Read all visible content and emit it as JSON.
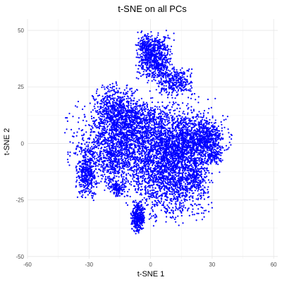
{
  "chart_data": {
    "type": "scatter",
    "title": "t-SNE on all PCs",
    "xlabel": "t-SNE 1",
    "ylabel": "t-SNE 2",
    "xlim": [
      -60,
      62
    ],
    "ylim": [
      -51,
      55
    ],
    "x_ticks": [
      -60,
      -30,
      0,
      30,
      60
    ],
    "y_ticks": [
      -50,
      -25,
      0,
      25,
      50
    ],
    "grid": true,
    "point_color": "#0000ff",
    "series": [
      {
        "clusters": [
          {
            "cx": -3,
            "cy": 0,
            "sx": 16,
            "sy": 10,
            "n": 2300
          },
          {
            "cx": 18,
            "cy": 1,
            "sx": 9,
            "sy": 5,
            "n": 900
          },
          {
            "cx": -17,
            "cy": 14,
            "sx": 5,
            "sy": 6,
            "n": 600
          },
          {
            "cx": -9,
            "cy": 9,
            "sx": 7,
            "sy": 4,
            "n": 400
          },
          {
            "cx": 9,
            "cy": -15,
            "sx": 9,
            "sy": 9,
            "n": 1300
          },
          {
            "cx": -18,
            "cy": -7,
            "sx": 4,
            "sy": 6,
            "n": 350
          },
          {
            "cx": 2,
            "cy": 38,
            "sx": 4,
            "sy": 5,
            "n": 750
          },
          {
            "cx": 12,
            "cy": 27,
            "sx": 4,
            "sy": 3,
            "n": 300
          },
          {
            "cx": -3,
            "cy": 44,
            "sx": 1.2,
            "sy": 1.5,
            "n": 60
          },
          {
            "cx": -31,
            "cy": -13,
            "sx": 2.2,
            "sy": 5,
            "n": 380
          },
          {
            "cx": -16,
            "cy": -20,
            "sx": 1.6,
            "sy": 1.5,
            "n": 110
          },
          {
            "cx": -6,
            "cy": -33,
            "sx": 1.6,
            "sy": 3,
            "n": 320
          },
          {
            "cx": 28,
            "cy": 2,
            "sx": 3,
            "sy": 4,
            "n": 250
          },
          {
            "cx": 31,
            "cy": -5,
            "sx": 2,
            "sy": 2,
            "n": 90
          },
          {
            "cx": 22,
            "cy": -15,
            "sx": 3,
            "sy": 4,
            "n": 200
          }
        ]
      }
    ]
  }
}
